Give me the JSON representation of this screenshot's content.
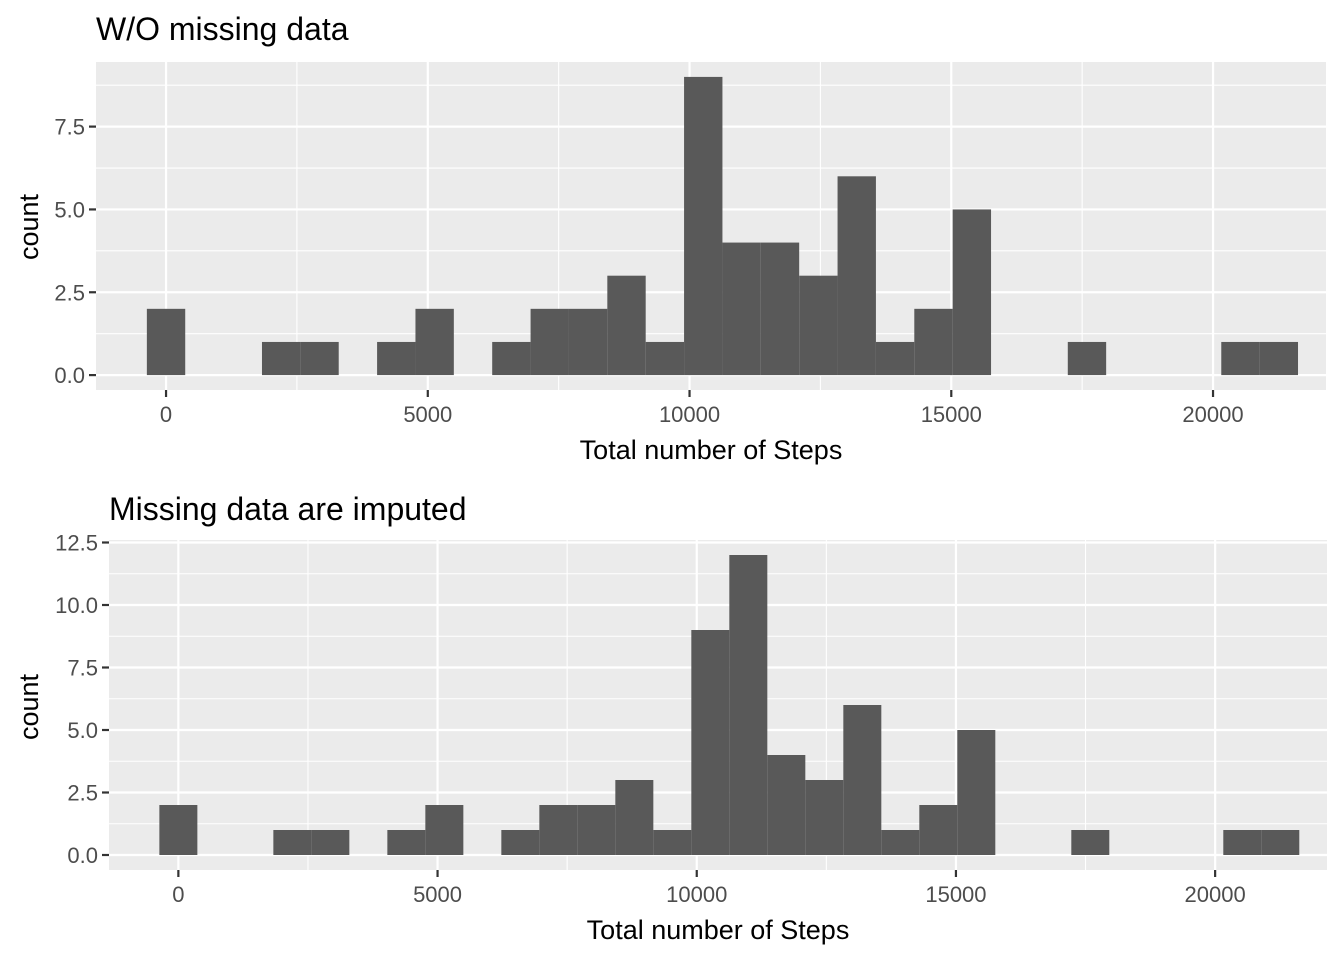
{
  "chart_data": [
    {
      "type": "bar",
      "title": "W/O missing data",
      "xlabel": "Total number of Steps",
      "ylabel": "count",
      "xlim": [
        -1338,
        22158
      ],
      "ylim": [
        -0.45,
        9.45
      ],
      "x_ticks": [
        0,
        5000,
        10000,
        15000,
        20000
      ],
      "x_tick_labels": [
        "0",
        "5000",
        "10000",
        "15000",
        "20000"
      ],
      "y_ticks": [
        0,
        2.5,
        5,
        7.5
      ],
      "y_tick_labels": [
        "0.0",
        "2.5",
        "5.0",
        "7.5"
      ],
      "grid": true,
      "bin_width": 733,
      "bin_centers": [
        0,
        733,
        1466,
        2199,
        2932,
        3665,
        4398,
        5131,
        5864,
        6597,
        7330,
        8063,
        8796,
        9529,
        10262,
        10995,
        11728,
        12461,
        13194,
        13927,
        14660,
        15393,
        16126,
        16859,
        17592,
        18325,
        19058,
        19791,
        20524,
        21257
      ],
      "values": [
        2,
        0,
        0,
        1,
        1,
        0,
        1,
        2,
        0,
        1,
        2,
        2,
        3,
        1,
        9,
        4,
        4,
        3,
        6,
        1,
        2,
        5,
        0,
        0,
        1,
        0,
        0,
        0,
        1,
        1
      ]
    },
    {
      "type": "bar",
      "title": "Missing data are imputed",
      "xlabel": "Total number of Steps",
      "ylabel": "count",
      "xlim": [
        -1338,
        22158
      ],
      "ylim": [
        -0.6,
        12.6
      ],
      "x_ticks": [
        0,
        5000,
        10000,
        15000,
        20000
      ],
      "x_tick_labels": [
        "0",
        "5000",
        "10000",
        "15000",
        "20000"
      ],
      "y_ticks": [
        0,
        2.5,
        5,
        7.5,
        10,
        12.5
      ],
      "y_tick_labels": [
        "0.0",
        "2.5",
        "5.0",
        "7.5",
        "10.0",
        "12.5"
      ],
      "grid": true,
      "bin_width": 733,
      "bin_centers": [
        0,
        733,
        1466,
        2199,
        2932,
        3665,
        4398,
        5131,
        5864,
        6597,
        7330,
        8063,
        8796,
        9529,
        10262,
        10995,
        11728,
        12461,
        13194,
        13927,
        14660,
        15393,
        16126,
        16859,
        17592,
        18325,
        19058,
        19791,
        20524,
        21257
      ],
      "values": [
        2,
        0,
        0,
        1,
        1,
        0,
        1,
        2,
        0,
        1,
        2,
        2,
        3,
        1,
        9,
        12,
        4,
        3,
        6,
        1,
        2,
        5,
        0,
        0,
        1,
        0,
        0,
        0,
        1,
        1
      ]
    }
  ]
}
